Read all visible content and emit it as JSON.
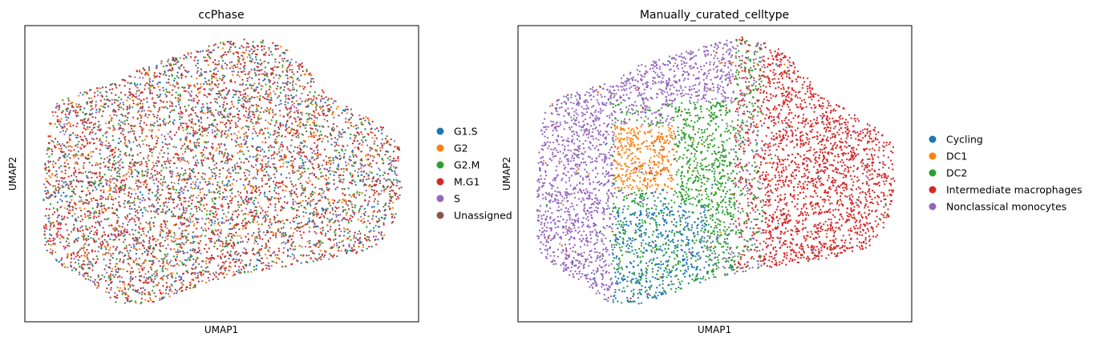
{
  "chart_data": [
    {
      "type": "scatter",
      "title": "ccPhase",
      "xlabel": "UMAP1",
      "ylabel": "UMAP2",
      "xticks": [],
      "yticks": [],
      "grid": false,
      "legend_position": "right",
      "legend_text_clipped": true,
      "series": [
        {
          "name": "G1.S",
          "color": "#1f77b4"
        },
        {
          "name": "G2",
          "color": "#ff7f0e"
        },
        {
          "name": "G2.M",
          "color": "#2ca02c"
        },
        {
          "name": "M.G1",
          "color": "#d62728"
        },
        {
          "name": "S",
          "color": "#9467bd"
        },
        {
          "name": "Unassigned",
          "color": "#8c564b"
        }
      ],
      "approx_point_count": 6000,
      "mixing": "uniform",
      "background_color": "#d62728",
      "mix_weights": [
        0.14,
        0.13,
        0.12,
        0.33,
        0.1,
        0.18
      ]
    },
    {
      "type": "scatter",
      "title": "Manually_curated_celltype",
      "xlabel": "UMAP1",
      "ylabel": "UMAP2",
      "xticks": [],
      "yticks": [],
      "grid": false,
      "legend_position": "right",
      "series": [
        {
          "name": "Cycling",
          "color": "#1f77b4"
        },
        {
          "name": "DC1",
          "color": "#ff7f0e"
        },
        {
          "name": "DC2",
          "color": "#2ca02c"
        },
        {
          "name": "Intermediate macrophages",
          "color": "#d62728"
        },
        {
          "name": "Nonclassical monocytes",
          "color": "#9467bd"
        }
      ],
      "approx_point_count": 6000,
      "mixing": "clustered"
    }
  ]
}
